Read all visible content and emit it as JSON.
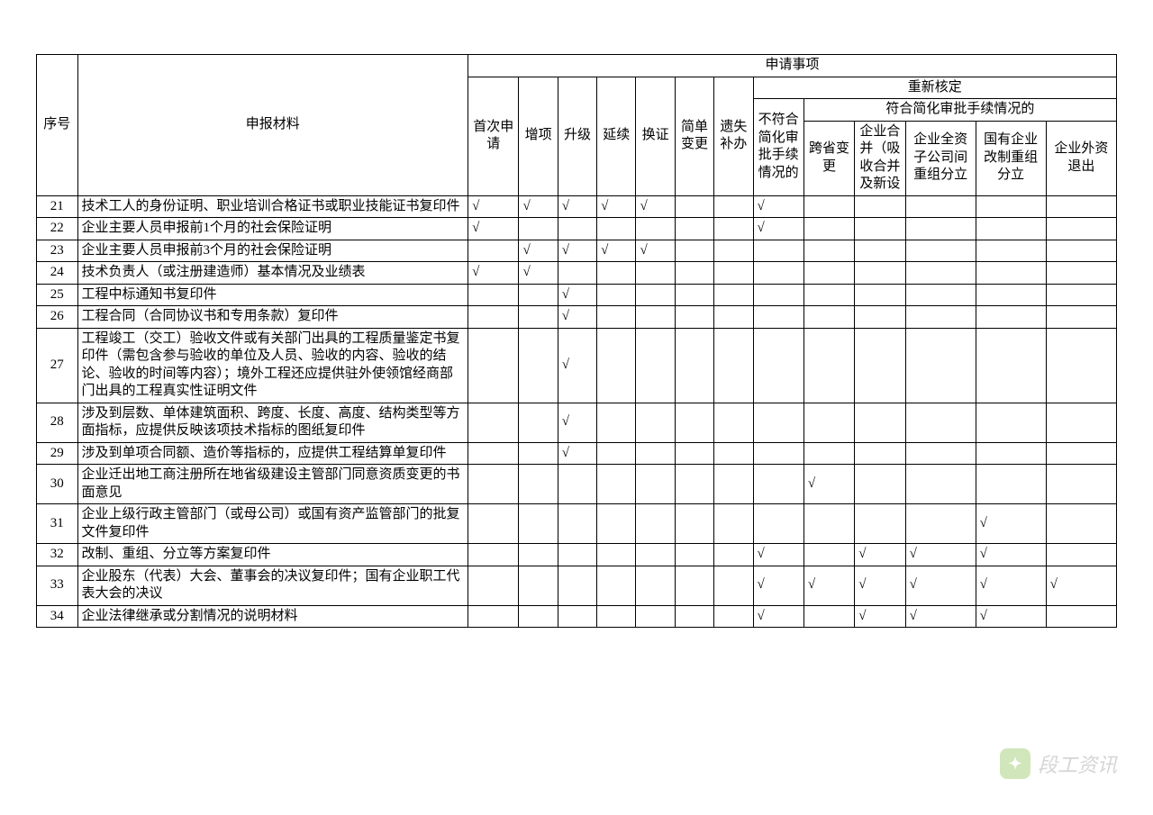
{
  "headers": {
    "seq": "序号",
    "material": "申报材料",
    "apply": "申请事项",
    "first": "首次申请",
    "add": "增项",
    "upgrade": "升级",
    "renew": "延续",
    "change_cert": "换证",
    "simple_change": "简单变更",
    "lost": "遗失补办",
    "redetermine": "重新核定",
    "not_simplified": "不符合简化审批手续情况的",
    "simplified": "符合简化审批手续情况的",
    "cross_province": "跨省变更",
    "merge": "企业合并（吸收合并及新设",
    "subsidiary": "企业全资子公司间重组分立",
    "soe_reform": "国有企业改制重组分立",
    "foreign_exit": "企业外资退出"
  },
  "checkmark": "√",
  "rows": [
    {
      "seq": "21",
      "material": "技术工人的身份证明、职业培训合格证书或职业技能证书复印件",
      "checks": [
        "√",
        "√",
        "√",
        "√",
        "√",
        "",
        "",
        "√",
        "",
        "",
        "",
        "",
        ""
      ]
    },
    {
      "seq": "22",
      "material": "企业主要人员申报前1个月的社会保险证明",
      "checks": [
        "√",
        "",
        "",
        "",
        "",
        "",
        "",
        "√",
        "",
        "",
        "",
        "",
        ""
      ]
    },
    {
      "seq": "23",
      "material": "企业主要人员申报前3个月的社会保险证明",
      "checks": [
        "",
        "√",
        "√",
        "√",
        "√",
        "",
        "",
        "",
        "",
        "",
        "",
        "",
        ""
      ]
    },
    {
      "seq": "24",
      "material": "技术负责人（或注册建造师）基本情况及业绩表",
      "checks": [
        "√",
        "√",
        "",
        "",
        "",
        "",
        "",
        "",
        "",
        "",
        "",
        "",
        ""
      ]
    },
    {
      "seq": "25",
      "material": "工程中标通知书复印件",
      "checks": [
        "",
        "",
        "√",
        "",
        "",
        "",
        "",
        "",
        "",
        "",
        "",
        "",
        ""
      ]
    },
    {
      "seq": "26",
      "material": "工程合同（合同协议书和专用条款）复印件",
      "checks": [
        "",
        "",
        "√",
        "",
        "",
        "",
        "",
        "",
        "",
        "",
        "",
        "",
        ""
      ]
    },
    {
      "seq": "27",
      "material": "工程竣工（交工）验收文件或有关部门出具的工程质量鉴定书复印件（需包含参与验收的单位及人员、验收的内容、验收的结论、验收的时间等内容）；境外工程还应提供驻外使领馆经商部门出具的工程真实性证明文件",
      "checks": [
        "",
        "",
        "√",
        "",
        "",
        "",
        "",
        "",
        "",
        "",
        "",
        "",
        ""
      ]
    },
    {
      "seq": "28",
      "material": "涉及到层数、单体建筑面积、跨度、长度、高度、结构类型等方面指标，应提供反映该项技术指标的图纸复印件",
      "checks": [
        "",
        "",
        "√",
        "",
        "",
        "",
        "",
        "",
        "",
        "",
        "",
        "",
        ""
      ]
    },
    {
      "seq": "29",
      "material": "涉及到单项合同额、造价等指标的，应提供工程结算单复印件",
      "checks": [
        "",
        "",
        "√",
        "",
        "",
        "",
        "",
        "",
        "",
        "",
        "",
        "",
        ""
      ]
    },
    {
      "seq": "30",
      "material": "企业迁出地工商注册所在地省级建设主管部门同意资质变更的书面意见",
      "checks": [
        "",
        "",
        "",
        "",
        "",
        "",
        "",
        "",
        "√",
        "",
        "",
        "",
        ""
      ]
    },
    {
      "seq": "31",
      "material": "企业上级行政主管部门（或母公司）或国有资产监管部门的批复文件复印件",
      "checks": [
        "",
        "",
        "",
        "",
        "",
        "",
        "",
        "",
        "",
        "",
        "",
        "√",
        ""
      ]
    },
    {
      "seq": "32",
      "material": "改制、重组、分立等方案复印件",
      "checks": [
        "",
        "",
        "",
        "",
        "",
        "",
        "",
        "√",
        "",
        "√",
        "√",
        "√",
        ""
      ]
    },
    {
      "seq": "33",
      "material": "企业股东（代表）大会、董事会的决议复印件；国有企业职工代表大会的决议",
      "checks": [
        "",
        "",
        "",
        "",
        "",
        "",
        "",
        "√",
        "√",
        "√",
        "√",
        "√",
        "√"
      ]
    },
    {
      "seq": "34",
      "material": "企业法律继承或分割情况的说明材料",
      "checks": [
        "",
        "",
        "",
        "",
        "",
        "",
        "",
        "√",
        "",
        "√",
        "√",
        "√",
        ""
      ]
    }
  ],
  "watermark": {
    "text": "段工资讯"
  }
}
